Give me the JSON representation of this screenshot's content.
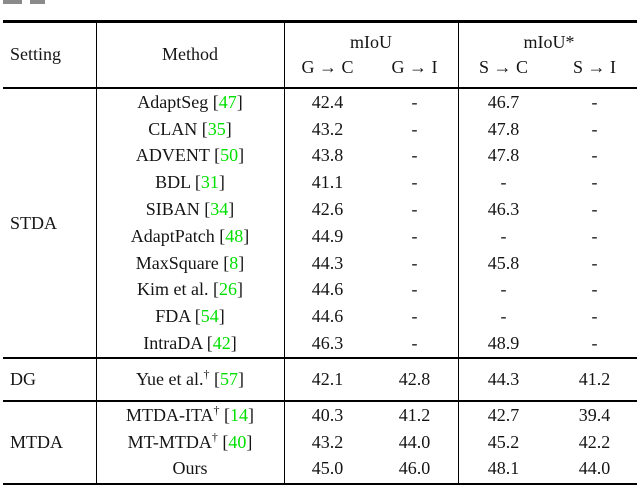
{
  "page": {
    "cropped_caption_fragment": "partial text cut off at top of crop"
  },
  "table": {
    "header": {
      "setting": "Setting",
      "method": "Method",
      "groups": [
        {
          "title": "mIoU",
          "sub": [
            "G → C",
            "G → I"
          ]
        },
        {
          "title": "mIoU*",
          "sub": [
            "S → C",
            "S → I"
          ]
        }
      ]
    },
    "citation_color": "#00e000",
    "text_color": "#151515",
    "sections": [
      {
        "setting": "STDA",
        "rows": [
          {
            "method": "AdaptSeg",
            "dagger": false,
            "cite": "47",
            "values": [
              "42.4",
              "-",
              "46.7",
              "-"
            ]
          },
          {
            "method": "CLAN",
            "dagger": false,
            "cite": "35",
            "values": [
              "43.2",
              "-",
              "47.8",
              "-"
            ]
          },
          {
            "method": "ADVENT",
            "dagger": false,
            "cite": "50",
            "values": [
              "43.8",
              "-",
              "47.8",
              "-"
            ]
          },
          {
            "method": "BDL",
            "dagger": false,
            "cite": "31",
            "values": [
              "41.1",
              "-",
              "-",
              "-"
            ]
          },
          {
            "method": "SIBAN",
            "dagger": false,
            "cite": "34",
            "values": [
              "42.6",
              "-",
              "46.3",
              "-"
            ]
          },
          {
            "method": "AdaptPatch",
            "dagger": false,
            "cite": "48",
            "values": [
              "44.9",
              "-",
              "-",
              "-"
            ]
          },
          {
            "method": "MaxSquare",
            "dagger": false,
            "cite": "8",
            "values": [
              "44.3",
              "-",
              "45.8",
              "-"
            ]
          },
          {
            "method": "Kim et al.",
            "dagger": false,
            "cite": "26",
            "values": [
              "44.6",
              "-",
              "-",
              "-"
            ]
          },
          {
            "method": "FDA",
            "dagger": false,
            "cite": "54",
            "values": [
              "44.6",
              "-",
              "-",
              "-"
            ]
          },
          {
            "method": "IntraDA",
            "dagger": false,
            "cite": "42",
            "values": [
              "46.3",
              "-",
              "48.9",
              "-"
            ]
          }
        ]
      },
      {
        "setting": "DG",
        "rows": [
          {
            "method": "Yue et al.",
            "dagger": true,
            "cite": "57",
            "values": [
              "42.1",
              "42.8",
              "44.3",
              "41.2"
            ]
          }
        ]
      },
      {
        "setting": "MTDA",
        "rows": [
          {
            "method": "MTDA-ITA",
            "dagger": true,
            "cite": "14",
            "values": [
              "40.3",
              "41.2",
              "42.7",
              "39.4"
            ]
          },
          {
            "method": "MT-MTDA",
            "dagger": true,
            "cite": "40",
            "values": [
              "43.2",
              "44.0",
              "45.2",
              "42.2"
            ]
          },
          {
            "method": "Ours",
            "dagger": false,
            "cite": null,
            "values": [
              "45.0",
              "46.0",
              "48.1",
              "44.0"
            ]
          }
        ]
      }
    ]
  }
}
